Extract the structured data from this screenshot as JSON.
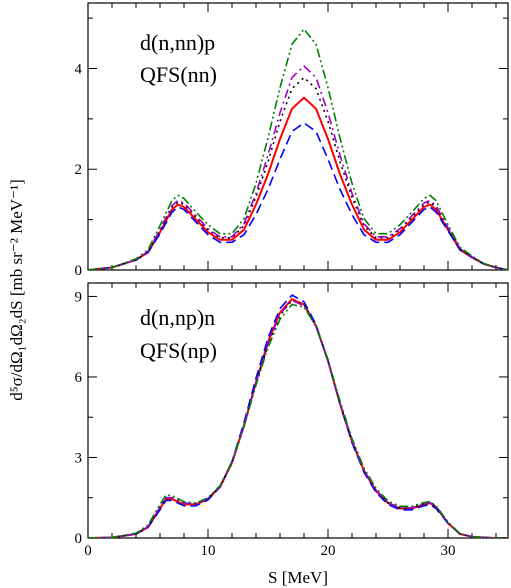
{
  "chart_data": [
    {
      "type": "line",
      "panel": "top",
      "annotation": [
        "d(n,nn)p",
        "QFS(nn)"
      ],
      "xlim": [
        0,
        35
      ],
      "ylim": [
        0,
        5.3
      ],
      "xticks": [
        "0",
        "10",
        "20",
        "30"
      ],
      "yticks": [
        "0",
        "2",
        "4"
      ],
      "ytick_values": [
        0,
        2,
        4
      ],
      "series": [
        {
          "style": "solid",
          "color": "#ff0000",
          "x": [
            0,
            2,
            4,
            5,
            6,
            7,
            7.5,
            8,
            9,
            10,
            11,
            12,
            13,
            14,
            15,
            16,
            17,
            18,
            19,
            20,
            21,
            22,
            23,
            24,
            25,
            26,
            27,
            28,
            28.5,
            29,
            30,
            31,
            32,
            33,
            34,
            35
          ],
          "y": [
            0,
            0.05,
            0.2,
            0.35,
            0.75,
            1.2,
            1.3,
            1.25,
            1.0,
            0.75,
            0.6,
            0.6,
            0.8,
            1.3,
            1.9,
            2.6,
            3.2,
            3.42,
            3.2,
            2.6,
            1.9,
            1.3,
            0.8,
            0.6,
            0.6,
            0.75,
            1.0,
            1.25,
            1.3,
            1.2,
            0.8,
            0.4,
            0.25,
            0.12,
            0.05,
            0
          ]
        },
        {
          "style": "dashed",
          "color": "#0000ff",
          "x": [
            0,
            2,
            4,
            5,
            6,
            7,
            7.5,
            8,
            9,
            10,
            11,
            12,
            13,
            14,
            15,
            16,
            17,
            18,
            19,
            20,
            21,
            22,
            23,
            24,
            25,
            26,
            27,
            28,
            28.5,
            29,
            30,
            31,
            32,
            33,
            34,
            35
          ],
          "y": [
            0,
            0.05,
            0.2,
            0.35,
            0.72,
            1.15,
            1.25,
            1.2,
            0.95,
            0.7,
            0.55,
            0.55,
            0.7,
            1.1,
            1.6,
            2.2,
            2.75,
            2.92,
            2.75,
            2.2,
            1.6,
            1.1,
            0.7,
            0.55,
            0.55,
            0.7,
            0.95,
            1.2,
            1.25,
            1.15,
            0.78,
            0.4,
            0.25,
            0.12,
            0.05,
            0
          ]
        },
        {
          "style": "dotted",
          "color": "#000000",
          "x": [
            0,
            2,
            4,
            5,
            6,
            7,
            7.5,
            8,
            9,
            10,
            11,
            12,
            13,
            14,
            15,
            16,
            17,
            18,
            19,
            20,
            21,
            22,
            23,
            24,
            25,
            26,
            27,
            28,
            28.5,
            29,
            30,
            31,
            32,
            33,
            34,
            35
          ],
          "y": [
            0,
            0.05,
            0.2,
            0.36,
            0.78,
            1.25,
            1.35,
            1.3,
            1.05,
            0.8,
            0.64,
            0.64,
            0.88,
            1.45,
            2.15,
            2.95,
            3.6,
            3.82,
            3.6,
            2.95,
            2.15,
            1.45,
            0.88,
            0.64,
            0.64,
            0.8,
            1.05,
            1.3,
            1.35,
            1.25,
            0.82,
            0.42,
            0.26,
            0.12,
            0.05,
            0
          ]
        },
        {
          "style": "dashdot",
          "color": "#a000c8",
          "x": [
            0,
            2,
            4,
            5,
            6,
            7,
            7.5,
            8,
            9,
            10,
            11,
            12,
            13,
            14,
            15,
            16,
            17,
            18,
            19,
            20,
            21,
            22,
            23,
            24,
            25,
            26,
            27,
            28,
            28.5,
            29,
            30,
            31,
            32,
            33,
            34,
            35
          ],
          "y": [
            0,
            0.05,
            0.2,
            0.37,
            0.8,
            1.28,
            1.38,
            1.33,
            1.08,
            0.82,
            0.66,
            0.66,
            0.92,
            1.52,
            2.28,
            3.12,
            3.82,
            4.05,
            3.82,
            3.12,
            2.28,
            1.52,
            0.92,
            0.66,
            0.66,
            0.82,
            1.08,
            1.33,
            1.38,
            1.28,
            0.84,
            0.43,
            0.26,
            0.12,
            0.05,
            0
          ]
        },
        {
          "style": "dashdotdot",
          "color": "#008000",
          "x": [
            0,
            2,
            4,
            5,
            6,
            7,
            7.5,
            8,
            9,
            10,
            11,
            12,
            13,
            14,
            15,
            16,
            17,
            18,
            19,
            20,
            21,
            22,
            23,
            24,
            25,
            26,
            27,
            28,
            28.5,
            29,
            30,
            31,
            32,
            33,
            34,
            35
          ],
          "y": [
            0,
            0.05,
            0.22,
            0.4,
            0.88,
            1.38,
            1.48,
            1.42,
            1.15,
            0.9,
            0.72,
            0.72,
            1.02,
            1.72,
            2.62,
            3.62,
            4.48,
            4.78,
            4.48,
            3.62,
            2.62,
            1.72,
            1.02,
            0.72,
            0.72,
            0.9,
            1.15,
            1.42,
            1.48,
            1.38,
            0.9,
            0.45,
            0.28,
            0.13,
            0.05,
            0
          ]
        }
      ]
    },
    {
      "type": "line",
      "panel": "bottom",
      "annotation": [
        "d(n,np)n",
        "QFS(np)"
      ],
      "xlim": [
        0,
        35
      ],
      "ylim": [
        0,
        9.5
      ],
      "xticks": [
        "0",
        "10",
        "20",
        "30"
      ],
      "yticks": [
        "0",
        "3",
        "6",
        "9"
      ],
      "ytick_values": [
        0,
        3,
        6,
        9
      ],
      "xlabel": "S [MeV]",
      "series": [
        {
          "style": "solid",
          "color": "#ff0000",
          "x": [
            0,
            2,
            4,
            5,
            6,
            6.5,
            7,
            8,
            9,
            10,
            11,
            12,
            13,
            14,
            15,
            16,
            17,
            18,
            19,
            20,
            21,
            22,
            23,
            24,
            25,
            26,
            27,
            28,
            28.5,
            29,
            30,
            31,
            32,
            33,
            34,
            35
          ],
          "y": [
            0,
            0.02,
            0.15,
            0.4,
            1.1,
            1.45,
            1.45,
            1.25,
            1.25,
            1.45,
            1.9,
            2.8,
            4.2,
            5.8,
            7.3,
            8.4,
            8.9,
            8.7,
            7.9,
            6.6,
            5.0,
            3.6,
            2.5,
            1.75,
            1.3,
            1.1,
            1.1,
            1.25,
            1.3,
            1.15,
            0.55,
            0.15,
            0.05,
            0.02,
            0,
            0
          ]
        },
        {
          "style": "dashed",
          "color": "#0000ff",
          "x": [
            0,
            2,
            4,
            5,
            6,
            6.5,
            7,
            8,
            9,
            10,
            11,
            12,
            13,
            14,
            15,
            16,
            17,
            18,
            19,
            20,
            21,
            22,
            23,
            24,
            25,
            26,
            27,
            28,
            28.5,
            29,
            30,
            31,
            32,
            33,
            34,
            35
          ],
          "y": [
            0,
            0.02,
            0.15,
            0.4,
            1.05,
            1.4,
            1.4,
            1.2,
            1.2,
            1.42,
            1.9,
            2.85,
            4.3,
            5.95,
            7.45,
            8.55,
            9.05,
            8.8,
            7.95,
            6.6,
            5.0,
            3.55,
            2.45,
            1.7,
            1.25,
            1.05,
            1.05,
            1.2,
            1.25,
            1.1,
            0.55,
            0.15,
            0.05,
            0.02,
            0,
            0
          ]
        },
        {
          "style": "dotted",
          "color": "#000000",
          "x": [
            0,
            2,
            4,
            5,
            6,
            6.5,
            7,
            8,
            9,
            10,
            11,
            12,
            13,
            14,
            15,
            16,
            17,
            18,
            19,
            20,
            21,
            22,
            23,
            24,
            25,
            26,
            27,
            28,
            28.5,
            29,
            30,
            31,
            32,
            33,
            34,
            35
          ],
          "y": [
            0,
            0.02,
            0.15,
            0.42,
            1.15,
            1.5,
            1.5,
            1.3,
            1.28,
            1.48,
            1.92,
            2.8,
            4.15,
            5.75,
            7.2,
            8.3,
            8.85,
            8.7,
            7.9,
            6.6,
            5.0,
            3.62,
            2.52,
            1.78,
            1.32,
            1.12,
            1.12,
            1.27,
            1.32,
            1.17,
            0.56,
            0.15,
            0.05,
            0.02,
            0,
            0
          ]
        },
        {
          "style": "dashdot",
          "color": "#a000c8",
          "x": [
            0,
            2,
            4,
            5,
            6,
            6.5,
            7,
            8,
            9,
            10,
            11,
            12,
            13,
            14,
            15,
            16,
            17,
            18,
            19,
            20,
            21,
            22,
            23,
            24,
            25,
            26,
            27,
            28,
            28.5,
            29,
            30,
            31,
            32,
            33,
            34,
            35
          ],
          "y": [
            0,
            0.02,
            0.15,
            0.42,
            1.15,
            1.5,
            1.5,
            1.3,
            1.28,
            1.48,
            1.92,
            2.82,
            4.2,
            5.8,
            7.25,
            8.35,
            8.85,
            8.65,
            7.88,
            6.6,
            5.02,
            3.62,
            2.52,
            1.78,
            1.32,
            1.12,
            1.12,
            1.27,
            1.32,
            1.17,
            0.56,
            0.15,
            0.05,
            0.02,
            0,
            0
          ]
        },
        {
          "style": "dashdotdot",
          "color": "#008000",
          "x": [
            0,
            2,
            4,
            5,
            6,
            6.5,
            7,
            8,
            9,
            10,
            11,
            12,
            13,
            14,
            15,
            16,
            17,
            18,
            19,
            20,
            21,
            22,
            23,
            24,
            25,
            26,
            27,
            28,
            28.5,
            29,
            30,
            31,
            32,
            33,
            34,
            35
          ],
          "y": [
            0,
            0.02,
            0.18,
            0.48,
            1.25,
            1.6,
            1.58,
            1.35,
            1.3,
            1.5,
            1.95,
            2.85,
            4.15,
            5.7,
            7.1,
            8.15,
            8.7,
            8.6,
            7.9,
            6.65,
            5.1,
            3.7,
            2.6,
            1.85,
            1.38,
            1.18,
            1.18,
            1.32,
            1.36,
            1.2,
            0.6,
            0.16,
            0.05,
            0.02,
            0,
            0
          ]
        }
      ]
    }
  ],
  "ylabel": "d⁵σ/dΩ₁dΩ₂dS [mb sr⁻² MeV⁻¹]"
}
